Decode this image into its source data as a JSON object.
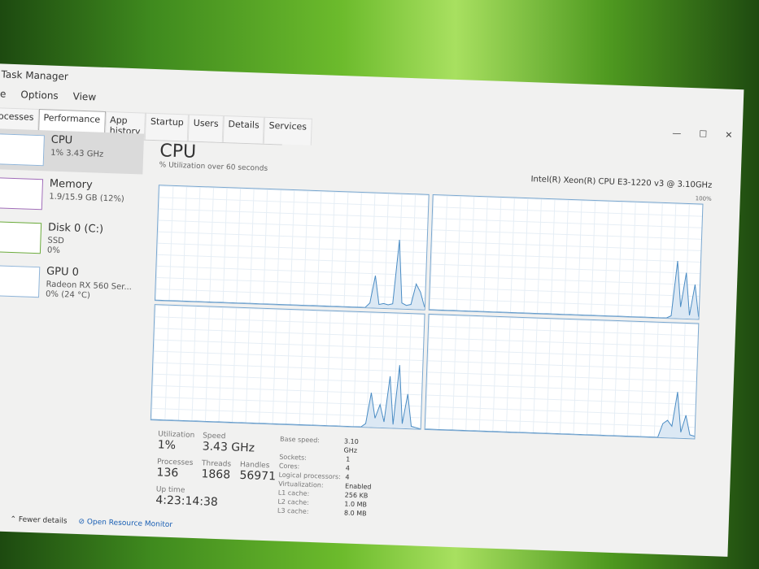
{
  "window": {
    "title": "Task Manager",
    "menu": [
      "le",
      "Options",
      "View"
    ],
    "controls": [
      "—",
      "☐",
      "✕"
    ]
  },
  "tabs": [
    "rocesses",
    "Performance",
    "App history",
    "Startup",
    "Users",
    "Details",
    "Services"
  ],
  "sidebar": [
    {
      "name": "CPU",
      "sub": "1% 3.43 GHz",
      "color": "#4a90c8"
    },
    {
      "name": "Memory",
      "sub": "1.9/15.9 GB (12%)",
      "color": "#8b3fa0"
    },
    {
      "name": "Disk 0 (C:)",
      "sub": "SSD",
      "sub2": "0%",
      "color": "#4a9a20"
    },
    {
      "name": "GPU 0",
      "sub": "Radeon RX 560 Ser...",
      "sub2": "0% (24 °C)",
      "color": "#4a90c8"
    }
  ],
  "main": {
    "title": "CPU",
    "subtitle": "% Utilization over 60 seconds",
    "model": "Intel(R) Xeon(R) CPU E3-1220 v3 @ 3.10GHz",
    "max_label": "100%"
  },
  "chart_data": {
    "type": "line",
    "series": [
      {
        "values": [
          0,
          0,
          0,
          0,
          0,
          0,
          0,
          0,
          0,
          0,
          0,
          0,
          0,
          0,
          0,
          0,
          0,
          0,
          0,
          0,
          0,
          0,
          0,
          0,
          0,
          0,
          0,
          0,
          0,
          0,
          0,
          0,
          0,
          0,
          0,
          0,
          0,
          0,
          0,
          0,
          0,
          0,
          0,
          0,
          0,
          0,
          0,
          4,
          28,
          3,
          4,
          3,
          4,
          60,
          5,
          3,
          4,
          22,
          15,
          2
        ]
      },
      {
        "values": [
          0,
          0,
          0,
          0,
          0,
          0,
          0,
          0,
          0,
          0,
          0,
          0,
          0,
          0,
          0,
          0,
          0,
          0,
          0,
          0,
          0,
          0,
          0,
          0,
          0,
          0,
          0,
          0,
          0,
          0,
          0,
          0,
          0,
          0,
          0,
          0,
          0,
          0,
          0,
          0,
          0,
          0,
          0,
          0,
          0,
          0,
          0,
          0,
          0,
          0,
          0,
          0,
          0,
          2,
          50,
          10,
          40,
          3,
          30,
          2
        ]
      },
      {
        "values": [
          0,
          0,
          0,
          0,
          0,
          0,
          0,
          0,
          0,
          0,
          0,
          0,
          0,
          0,
          0,
          0,
          0,
          0,
          0,
          0,
          0,
          0,
          0,
          0,
          0,
          0,
          0,
          0,
          0,
          0,
          0,
          0,
          0,
          0,
          0,
          0,
          0,
          0,
          0,
          0,
          0,
          0,
          0,
          0,
          0,
          0,
          0,
          3,
          30,
          8,
          20,
          5,
          45,
          3,
          55,
          4,
          30,
          2,
          1,
          0
        ]
      },
      {
        "values": [
          0,
          0,
          0,
          0,
          0,
          0,
          0,
          0,
          0,
          0,
          0,
          0,
          0,
          0,
          0,
          0,
          0,
          0,
          0,
          0,
          0,
          0,
          0,
          0,
          0,
          0,
          0,
          0,
          0,
          0,
          0,
          0,
          0,
          0,
          0,
          0,
          0,
          0,
          0,
          0,
          0,
          0,
          0,
          0,
          0,
          0,
          0,
          0,
          0,
          0,
          0,
          0,
          12,
          15,
          10,
          40,
          5,
          20,
          3,
          2
        ]
      }
    ],
    "ylim": [
      0,
      100
    ]
  },
  "stats": {
    "utilization_label": "Utilization",
    "utilization": "1%",
    "speed_label": "Speed",
    "speed": "3.43 GHz",
    "processes_label": "Processes",
    "processes": "136",
    "threads_label": "Threads",
    "threads": "1868",
    "handles_label": "Handles",
    "handles": "56971",
    "uptime_label": "Up time",
    "uptime": "4:23:14:38"
  },
  "specs": [
    [
      "Base speed:",
      "3.10 GHz"
    ],
    [
      "Sockets:",
      "1"
    ],
    [
      "Cores:",
      "4"
    ],
    [
      "Logical processors:",
      "4"
    ],
    [
      "Virtualization:",
      "Enabled"
    ],
    [
      "L1 cache:",
      "256 KB"
    ],
    [
      "L2 cache:",
      "1.0 MB"
    ],
    [
      "L3 cache:",
      "8.0 MB"
    ]
  ],
  "footer": {
    "fewer": "Fewer details",
    "monitor": "Open Resource Monitor"
  }
}
